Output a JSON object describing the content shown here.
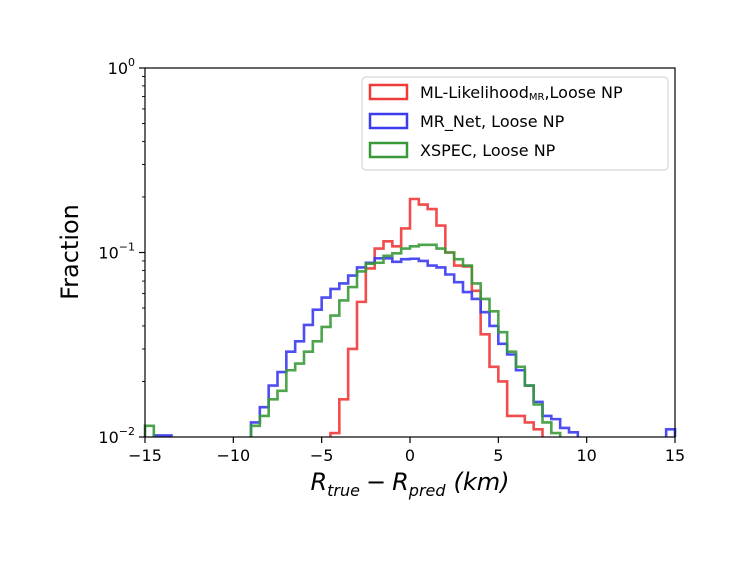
{
  "chart_data": {
    "type": "histogram",
    "title": "",
    "xlabel": {
      "r": "R",
      "true_sub": "true",
      "minus": "−",
      "pred_sub": "pred",
      "unit": "(km)"
    },
    "ylabel": "Fraction",
    "xlim": [
      -15,
      15
    ],
    "ylim": [
      0.01,
      1
    ],
    "yscale": "log",
    "bin_edges": [
      -15,
      -14,
      -13,
      -12,
      -11,
      -10,
      -9,
      -8,
      -7,
      -6,
      -5,
      -4,
      -3,
      -2,
      -1,
      0,
      1,
      2,
      3,
      4,
      5,
      6,
      7,
      8,
      9,
      10,
      11,
      12,
      13,
      14,
      15
    ],
    "x_ticks": [
      {
        "value": -15,
        "label": "−15"
      },
      {
        "value": -10,
        "label": "−10"
      },
      {
        "value": -5,
        "label": "−5"
      },
      {
        "value": 0,
        "label": "0"
      },
      {
        "value": 5,
        "label": "5"
      },
      {
        "value": 10,
        "label": "10"
      },
      {
        "value": 15,
        "label": "15"
      }
    ],
    "y_ticks": [
      {
        "value": 0.01,
        "base": "10",
        "exp": "−2"
      },
      {
        "value": 0.1,
        "base": "10",
        "exp": "−1"
      },
      {
        "value": 1,
        "base": "10",
        "exp": "0"
      }
    ],
    "series": [
      {
        "name": "ML-Likelihood",
        "name_sub": "MR",
        "name_suffix": ",Loose NP",
        "color": "#ef3a3a",
        "bins": [
          [
            -4.5,
            -4.0,
            0.0105
          ],
          [
            -4.0,
            -3.5,
            0.016
          ],
          [
            -3.5,
            -3.0,
            0.03
          ],
          [
            -3.0,
            -2.5,
            0.054
          ],
          [
            -2.5,
            -2.0,
            0.082
          ],
          [
            -2.0,
            -1.5,
            0.105
          ],
          [
            -1.5,
            -1.0,
            0.115
          ],
          [
            -1.0,
            -0.5,
            0.108
          ],
          [
            -0.5,
            0.0,
            0.135
          ],
          [
            0.0,
            0.5,
            0.195
          ],
          [
            0.5,
            1.0,
            0.182
          ],
          [
            1.0,
            1.5,
            0.172
          ],
          [
            1.5,
            2.0,
            0.14
          ],
          [
            2.0,
            2.5,
            0.1
          ],
          [
            2.5,
            3.0,
            0.085
          ],
          [
            3.0,
            3.5,
            0.084
          ],
          [
            3.5,
            4.0,
            0.062
          ],
          [
            4.0,
            4.5,
            0.036
          ],
          [
            4.5,
            5.0,
            0.024
          ],
          [
            5.0,
            5.5,
            0.02
          ],
          [
            5.5,
            6.0,
            0.013
          ],
          [
            6.0,
            6.5,
            0.013
          ],
          [
            6.5,
            7.0,
            0.012
          ],
          [
            7.0,
            7.5,
            0.011
          ]
        ]
      },
      {
        "name": "MR_Net, Loose NP",
        "name_sub": "",
        "name_suffix": "",
        "color": "#3a3aef",
        "bins": [
          [
            -14.5,
            -14.0,
            0.0102
          ],
          [
            -14.0,
            -13.5,
            0.0102
          ],
          [
            -9.0,
            -8.5,
            0.012
          ],
          [
            -8.5,
            -8.0,
            0.0145
          ],
          [
            -8.0,
            -7.5,
            0.019
          ],
          [
            -7.5,
            -7.0,
            0.0225
          ],
          [
            -7.0,
            -6.5,
            0.029
          ],
          [
            -6.5,
            -6.0,
            0.033
          ],
          [
            -6.0,
            -5.5,
            0.0405
          ],
          [
            -5.5,
            -5.0,
            0.049
          ],
          [
            -5.0,
            -4.5,
            0.057
          ],
          [
            -4.5,
            -4.0,
            0.0635
          ],
          [
            -4.0,
            -3.5,
            0.068
          ],
          [
            -3.5,
            -3.0,
            0.075
          ],
          [
            -3.0,
            -2.5,
            0.083
          ],
          [
            -2.5,
            -2.0,
            0.088
          ],
          [
            -2.0,
            -1.5,
            0.093
          ],
          [
            -1.5,
            -1.0,
            0.093
          ],
          [
            -1.0,
            -0.5,
            0.089
          ],
          [
            -0.5,
            0.0,
            0.092
          ],
          [
            0.0,
            0.5,
            0.0925
          ],
          [
            0.5,
            1.0,
            0.09
          ],
          [
            1.0,
            1.5,
            0.085
          ],
          [
            1.5,
            2.0,
            0.083
          ],
          [
            2.0,
            2.5,
            0.076
          ],
          [
            2.5,
            3.0,
            0.069
          ],
          [
            3.0,
            3.5,
            0.061
          ],
          [
            3.5,
            4.0,
            0.056
          ],
          [
            4.0,
            4.5,
            0.0475
          ],
          [
            4.5,
            5.0,
            0.04
          ],
          [
            5.0,
            5.5,
            0.032
          ],
          [
            5.5,
            6.0,
            0.028
          ],
          [
            6.0,
            6.5,
            0.023
          ],
          [
            6.5,
            7.0,
            0.019
          ],
          [
            7.0,
            7.5,
            0.0155
          ],
          [
            7.5,
            8.0,
            0.013
          ],
          [
            8.0,
            8.5,
            0.0125
          ],
          [
            8.5,
            9.0,
            0.0112
          ],
          [
            9.0,
            9.5,
            0.0106
          ],
          [
            14.5,
            15.0,
            0.011
          ]
        ]
      },
      {
        "name": "XSPEC, Loose NP",
        "name_sub": "",
        "name_suffix": "",
        "color": "#3a9a3a",
        "bins": [
          [
            -15.0,
            -14.5,
            0.0115
          ],
          [
            -9.0,
            -8.5,
            0.0115
          ],
          [
            -8.5,
            -8.0,
            0.013
          ],
          [
            -8.0,
            -7.5,
            0.016
          ],
          [
            -7.5,
            -7.0,
            0.0178
          ],
          [
            -7.0,
            -6.5,
            0.023
          ],
          [
            -6.5,
            -6.0,
            0.025
          ],
          [
            -6.0,
            -5.5,
            0.029
          ],
          [
            -5.5,
            -5.0,
            0.033
          ],
          [
            -5.0,
            -4.5,
            0.0395
          ],
          [
            -4.5,
            -4.0,
            0.0455
          ],
          [
            -4.0,
            -3.5,
            0.055
          ],
          [
            -3.5,
            -3.0,
            0.065
          ],
          [
            -3.0,
            -2.5,
            0.079
          ],
          [
            -2.5,
            -2.0,
            0.087
          ],
          [
            -2.0,
            -1.5,
            0.088
          ],
          [
            -1.5,
            -1.0,
            0.096
          ],
          [
            -1.0,
            -0.5,
            0.099
          ],
          [
            -0.5,
            0.0,
            0.105
          ],
          [
            0.0,
            0.5,
            0.108
          ],
          [
            0.5,
            1.0,
            0.11
          ],
          [
            1.0,
            1.5,
            0.11
          ],
          [
            1.5,
            2.0,
            0.105
          ],
          [
            2.0,
            2.5,
            0.1
          ],
          [
            2.5,
            3.0,
            0.092
          ],
          [
            3.0,
            3.5,
            0.085
          ],
          [
            3.5,
            4.0,
            0.068
          ],
          [
            4.0,
            4.5,
            0.056
          ],
          [
            4.5,
            5.0,
            0.048
          ],
          [
            5.0,
            5.5,
            0.037
          ],
          [
            5.5,
            6.0,
            0.029
          ],
          [
            6.0,
            6.5,
            0.024
          ],
          [
            6.5,
            7.0,
            0.019
          ],
          [
            7.0,
            7.5,
            0.015
          ],
          [
            7.5,
            8.0,
            0.012
          ],
          [
            8.0,
            8.5,
            0.0105
          ]
        ]
      }
    ],
    "legend": {
      "position": "top-right"
    }
  }
}
